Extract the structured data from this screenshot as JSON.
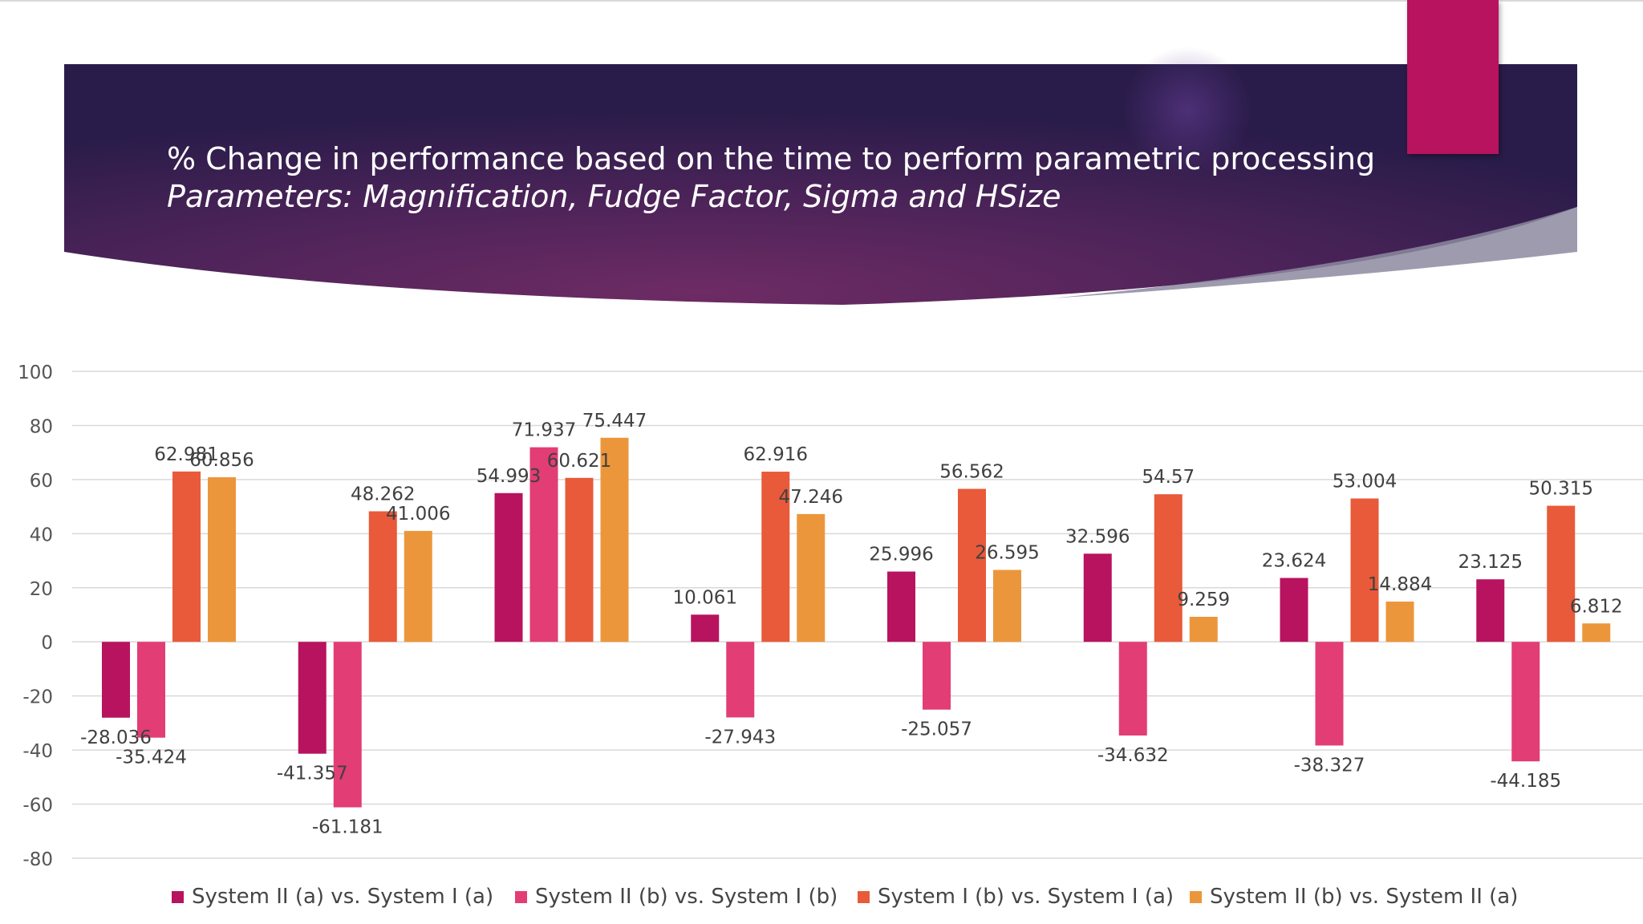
{
  "title": {
    "line1": "% Change in performance based on the time to perform parametric processing",
    "line2": "Parameters: Magnification, Fudge Factor, Sigma and HSize"
  },
  "colors": {
    "banner_dark": "#2c1d4c",
    "banner_mid": "#66295e",
    "accent": "#b8135f"
  },
  "chart_data": {
    "type": "bar",
    "categories": [
      "",
      "",
      "",
      "",
      "",
      "",
      "",
      ""
    ],
    "ylim": [
      -80,
      100
    ],
    "yticks": [
      100,
      80,
      60,
      40,
      20,
      0,
      -20,
      -40,
      -60,
      -80
    ],
    "grid": true,
    "legend_position": "bottom",
    "series": [
      {
        "name": "System II (a) vs. System I (a)",
        "color": "#b8135f",
        "values": [
          -28.036,
          -41.357,
          54.993,
          10.061,
          25.996,
          32.596,
          23.624,
          23.125
        ],
        "labels": [
          "-28.036",
          "-41.357",
          "54.993",
          "10.061",
          "25.996",
          "32.596",
          "23.624",
          "23.125"
        ]
      },
      {
        "name": "System II (b) vs. System I (b)",
        "color": "#e23d74",
        "values": [
          -35.424,
          -61.181,
          71.937,
          -27.943,
          -25.057,
          -34.632,
          -38.327,
          -44.185
        ],
        "labels": [
          "-35.424",
          "-61.181",
          "71.937",
          "-27.943",
          "-25.057",
          "-34.632",
          "-38.327",
          "-44.185"
        ]
      },
      {
        "name": "System I (b) vs. System I (a)",
        "color": "#e85a39",
        "values": [
          62.981,
          48.262,
          60.621,
          62.916,
          56.562,
          54.57,
          53.004,
          50.315
        ],
        "labels": [
          "62.981",
          "48.262",
          "60.621",
          "62.916",
          "56.562",
          "54.57",
          "53.004",
          "50.315"
        ]
      },
      {
        "name": "System II (b) vs. System II (a)",
        "color": "#ec963c",
        "values": [
          60.856,
          41.006,
          75.447,
          47.246,
          26.595,
          9.259,
          14.884,
          6.812
        ],
        "labels": [
          "60.856",
          "41.006",
          "75.447",
          "47.246",
          "26.595",
          "9.259",
          "14.884",
          "6.812"
        ]
      }
    ]
  }
}
